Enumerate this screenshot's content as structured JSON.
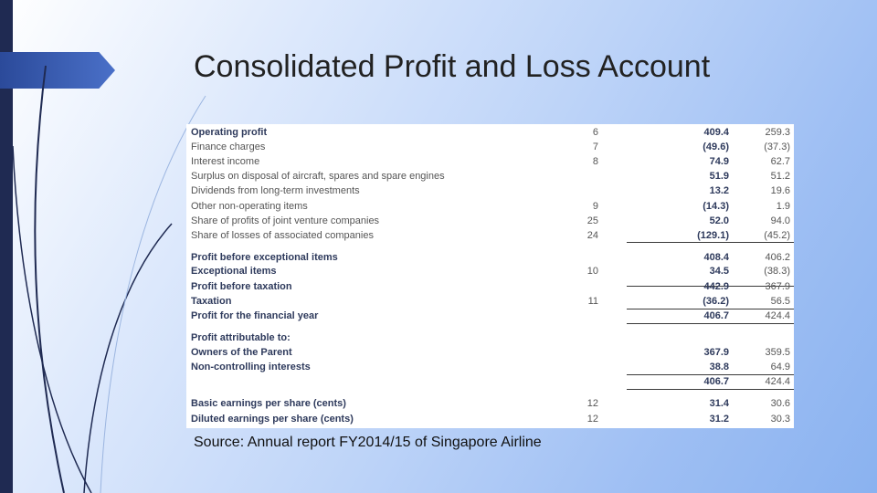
{
  "slide": {
    "title": "Consolidated Profit and Loss Account",
    "source": "Source: Annual report FY2014/15 of Singapore Airline"
  },
  "table": {
    "rows": [
      {
        "label": "Operating profit",
        "note": "6",
        "v1": "409.4",
        "v2": "259.3",
        "bold": true
      },
      {
        "label": "Finance charges",
        "note": "7",
        "v1": "(49.6)",
        "v2": "(37.3)",
        "bold": false
      },
      {
        "label": "Interest income",
        "note": "8",
        "v1": "74.9",
        "v2": "62.7",
        "bold": false
      },
      {
        "label": "Surplus on disposal of aircraft, spares and spare engines",
        "note": "",
        "v1": "51.9",
        "v2": "51.2",
        "bold": false
      },
      {
        "label": "Dividends from long-term investments",
        "note": "",
        "v1": "13.2",
        "v2": "19.6",
        "bold": false
      },
      {
        "label": "Other non-operating items",
        "note": "9",
        "v1": "(14.3)",
        "v2": "1.9",
        "bold": false
      },
      {
        "label": "Share of profits of joint venture companies",
        "note": "25",
        "v1": "52.0",
        "v2": "94.0",
        "bold": false
      },
      {
        "label": "Share of losses of associated companies",
        "note": "24",
        "v1": "(129.1)",
        "v2": "(45.2)",
        "bold": false
      },
      {
        "label": "Profit before exceptional items",
        "note": "",
        "v1": "408.4",
        "v2": "406.2",
        "bold": true
      },
      {
        "label": "Exceptional items",
        "note": "10",
        "v1": "34.5",
        "v2": "(38.3)",
        "bold": true
      },
      {
        "label": "Profit before taxation",
        "note": "",
        "v1": "442.9",
        "v2": "367.9",
        "bold": true
      },
      {
        "label": "Taxation",
        "note": "11",
        "v1": "(36.2)",
        "v2": "56.5",
        "bold": true
      },
      {
        "label": "Profit for the financial year",
        "note": "",
        "v1": "406.7",
        "v2": "424.4",
        "bold": true
      },
      {
        "label": "Profit attributable to:",
        "note": "",
        "v1": "",
        "v2": "",
        "bold": true
      },
      {
        "label": "Owners of the Parent",
        "note": "",
        "v1": "367.9",
        "v2": "359.5",
        "bold": true
      },
      {
        "label": "Non-controlling interests",
        "note": "",
        "v1": "38.8",
        "v2": "64.9",
        "bold": true
      },
      {
        "label": "",
        "note": "",
        "v1": "406.7",
        "v2": "424.4",
        "bold": true
      },
      {
        "label": "Basic earnings per share (cents)",
        "note": "12",
        "v1": "31.4",
        "v2": "30.6",
        "bold": true
      },
      {
        "label": "Diluted earnings per share (cents)",
        "note": "12",
        "v1": "31.2",
        "v2": "30.3",
        "bold": true
      }
    ]
  }
}
